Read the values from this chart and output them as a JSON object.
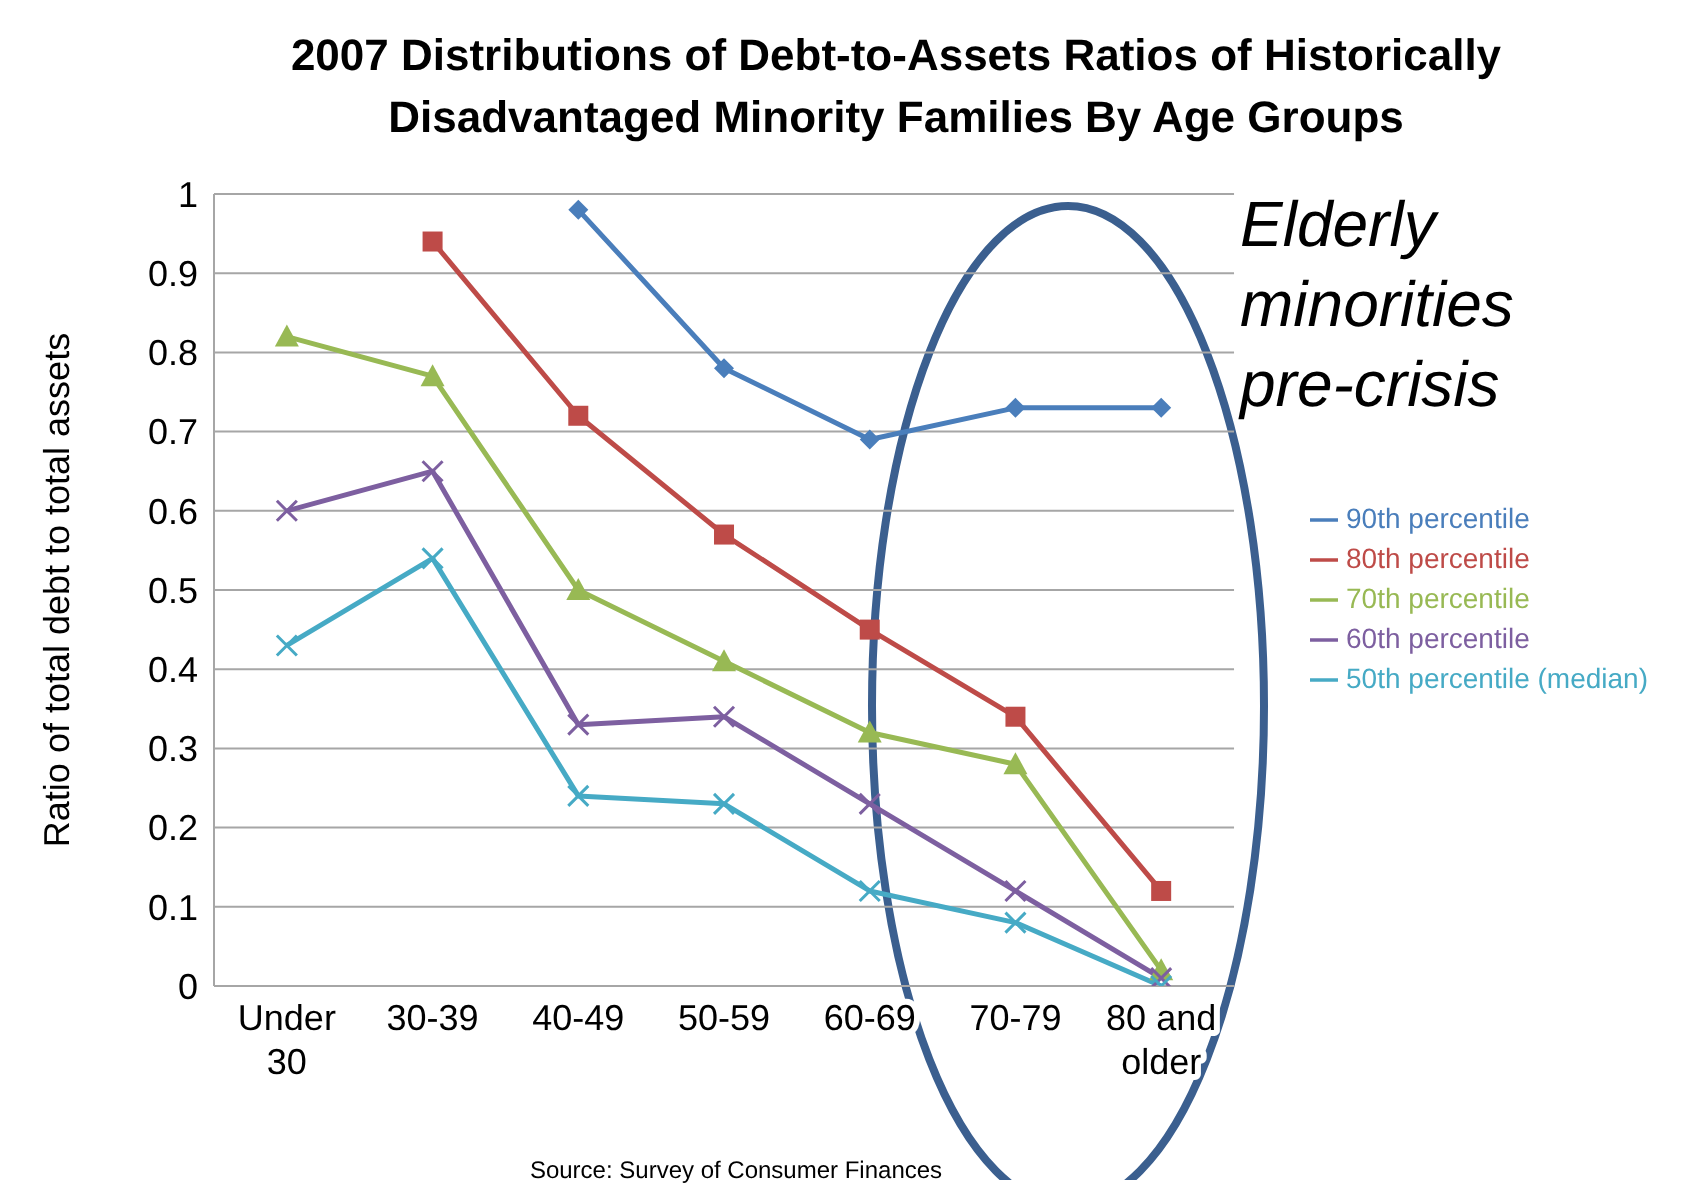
{
  "chart_data": {
    "type": "line",
    "title": "2007 Distributions of Debt-to-Assets Ratios of Historically Disadvantaged Minority Families By Age Groups",
    "ylabel": "Ratio of total debt to total assets",
    "categories": [
      "Under 30",
      "30-39",
      "40-49",
      "50-59",
      "60-69",
      "70-79",
      "80 and older"
    ],
    "series": [
      {
        "name": "90th percentile",
        "color": "#4a7ebb",
        "marker": "diamond",
        "values": [
          null,
          null,
          0.98,
          0.78,
          0.69,
          0.73,
          0.73
        ]
      },
      {
        "name": "80th percentile",
        "color": "#be4b48",
        "marker": "square",
        "values": [
          null,
          0.94,
          0.72,
          0.57,
          0.45,
          0.34,
          0.12
        ]
      },
      {
        "name": "70th percentile",
        "color": "#98b954",
        "marker": "triangle",
        "values": [
          0.82,
          0.77,
          0.5,
          0.41,
          0.32,
          0.28,
          0.02
        ]
      },
      {
        "name": "60th percentile",
        "color": "#7d5fa0",
        "marker": "cross",
        "values": [
          0.6,
          0.65,
          0.33,
          0.34,
          0.23,
          0.12,
          0.01
        ]
      },
      {
        "name": "50th percentile (median)",
        "color": "#46aac5",
        "marker": "cross",
        "values": [
          0.43,
          0.54,
          0.24,
          0.23,
          0.12,
          0.08,
          0
        ]
      }
    ],
    "ylim": [
      0,
      1
    ],
    "yticks": [
      0,
      0.1,
      0.2,
      0.3,
      0.4,
      0.5,
      0.6,
      0.7,
      0.8,
      0.9,
      1
    ],
    "grid": "y",
    "legend": "right",
    "line_style": "solid",
    "annotations": [
      "Elderly minorities pre-crisis",
      "Source:  Survey of Consumer Finances"
    ]
  }
}
